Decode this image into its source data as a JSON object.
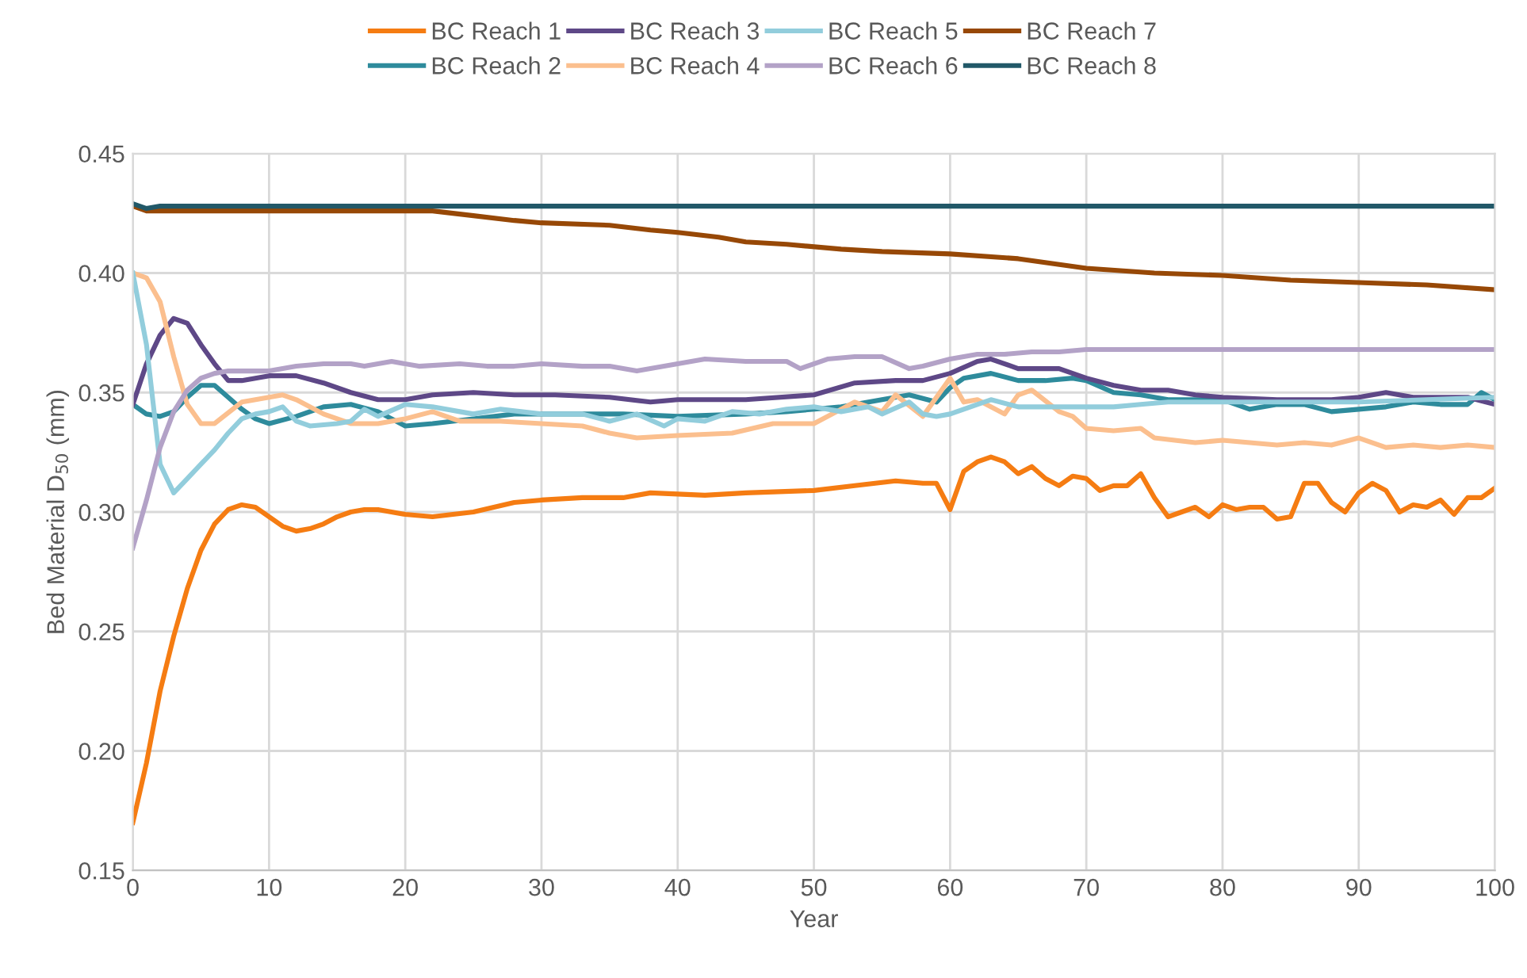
{
  "chart_data": {
    "type": "line",
    "xlabel": "Year",
    "ylabel": "Bed Material D$_{50}$ (mm)",
    "xlim": [
      0,
      100
    ],
    "xticks": [
      0,
      10,
      20,
      30,
      40,
      50,
      60,
      70,
      80,
      90,
      100
    ],
    "ylim": [
      0.15,
      0.45
    ],
    "yticks": [
      {
        "value": 0.15,
        "label": "0.15"
      },
      {
        "value": 0.2,
        "label": "0.20"
      },
      {
        "value": 0.25,
        "label": "0.25"
      },
      {
        "value": 0.3,
        "label": "0.30"
      },
      {
        "value": 0.35,
        "label": "0.35"
      },
      {
        "value": 0.4,
        "label": "0.40"
      },
      {
        "value": 0.45,
        "label": "0.45"
      }
    ],
    "grid": true,
    "legend": "top",
    "marker": "none",
    "line_style": "solid",
    "series": [
      {
        "name": "BC Reach 1",
        "color": "#f57c12",
        "x": [
          0,
          1,
          2,
          3,
          4,
          5,
          6,
          7,
          8,
          9,
          10,
          11,
          12,
          13,
          14,
          15,
          16,
          17,
          18,
          20,
          22,
          25,
          28,
          30,
          33,
          36,
          38,
          42,
          45,
          50,
          53,
          56,
          58,
          59,
          60,
          61,
          62,
          63,
          64,
          65,
          66,
          67,
          68,
          69,
          70,
          71,
          72,
          73,
          74,
          75,
          76,
          77,
          78,
          79,
          80,
          81,
          82,
          83,
          84,
          85,
          86,
          87,
          88,
          89,
          90,
          91,
          92,
          93,
          94,
          95,
          96,
          97,
          98,
          99,
          100
        ],
        "values": [
          0.17,
          0.195,
          0.225,
          0.248,
          0.268,
          0.284,
          0.295,
          0.301,
          0.303,
          0.302,
          0.298,
          0.294,
          0.292,
          0.293,
          0.295,
          0.298,
          0.3,
          0.301,
          0.301,
          0.299,
          0.298,
          0.3,
          0.304,
          0.305,
          0.306,
          0.306,
          0.308,
          0.307,
          0.308,
          0.309,
          0.311,
          0.313,
          0.312,
          0.312,
          0.301,
          0.317,
          0.321,
          0.323,
          0.321,
          0.316,
          0.319,
          0.314,
          0.311,
          0.315,
          0.314,
          0.309,
          0.311,
          0.311,
          0.316,
          0.306,
          0.298,
          0.3,
          0.302,
          0.298,
          0.303,
          0.301,
          0.302,
          0.302,
          0.297,
          0.298,
          0.312,
          0.312,
          0.304,
          0.3,
          0.308,
          0.312,
          0.309,
          0.3,
          0.303,
          0.302,
          0.305,
          0.299,
          0.306,
          0.306,
          0.31
        ]
      },
      {
        "name": "BC Reach 2",
        "color": "#2e8b9c",
        "x": [
          0,
          1,
          2,
          3,
          4,
          5,
          6,
          7,
          8,
          9,
          10,
          12,
          14,
          16,
          18,
          20,
          22,
          25,
          28,
          32,
          36,
          40,
          45,
          48,
          52,
          55,
          57,
          59,
          60,
          61,
          63,
          65,
          67,
          69,
          70,
          72,
          74,
          76,
          80,
          82,
          84,
          86,
          88,
          90,
          92,
          94,
          96,
          98,
          99,
          100
        ],
        "values": [
          0.345,
          0.341,
          0.34,
          0.342,
          0.348,
          0.353,
          0.353,
          0.348,
          0.343,
          0.339,
          0.337,
          0.34,
          0.344,
          0.345,
          0.342,
          0.336,
          0.337,
          0.339,
          0.341,
          0.341,
          0.341,
          0.34,
          0.341,
          0.342,
          0.344,
          0.347,
          0.349,
          0.346,
          0.352,
          0.356,
          0.358,
          0.355,
          0.355,
          0.356,
          0.355,
          0.35,
          0.349,
          0.347,
          0.347,
          0.343,
          0.345,
          0.345,
          0.342,
          0.343,
          0.344,
          0.346,
          0.345,
          0.345,
          0.35,
          0.347
        ]
      },
      {
        "name": "BC Reach 3",
        "color": "#5e4887",
        "x": [
          0,
          1,
          2,
          3,
          4,
          5,
          6,
          7,
          8,
          9,
          10,
          12,
          14,
          16,
          18,
          20,
          22,
          25,
          28,
          31,
          35,
          38,
          40,
          45,
          50,
          53,
          56,
          58,
          60,
          62,
          63,
          65,
          68,
          70,
          72,
          74,
          76,
          78,
          80,
          84,
          88,
          90,
          92,
          94,
          98,
          100
        ],
        "values": [
          0.345,
          0.362,
          0.374,
          0.381,
          0.379,
          0.37,
          0.362,
          0.355,
          0.355,
          0.356,
          0.357,
          0.357,
          0.354,
          0.35,
          0.347,
          0.347,
          0.349,
          0.35,
          0.349,
          0.349,
          0.348,
          0.346,
          0.347,
          0.347,
          0.349,
          0.354,
          0.355,
          0.355,
          0.358,
          0.363,
          0.364,
          0.36,
          0.36,
          0.356,
          0.353,
          0.351,
          0.351,
          0.349,
          0.348,
          0.347,
          0.347,
          0.348,
          0.35,
          0.348,
          0.348,
          0.345
        ]
      },
      {
        "name": "BC Reach 4",
        "color": "#fbbf8e",
        "x": [
          0,
          1,
          2,
          3,
          4,
          5,
          6,
          8,
          10,
          11,
          12,
          14,
          16,
          18,
          20,
          22,
          24,
          27,
          30,
          33,
          35,
          37,
          40,
          44,
          47,
          50,
          52,
          53,
          55,
          56,
          58,
          60,
          61,
          62,
          64,
          65,
          66,
          68,
          69,
          70,
          72,
          74,
          75,
          78,
          80,
          84,
          86,
          88,
          90,
          92,
          94,
          96,
          98,
          100
        ],
        "values": [
          0.4,
          0.398,
          0.388,
          0.365,
          0.345,
          0.337,
          0.337,
          0.346,
          0.348,
          0.349,
          0.347,
          0.341,
          0.337,
          0.337,
          0.339,
          0.342,
          0.338,
          0.338,
          0.337,
          0.336,
          0.333,
          0.331,
          0.332,
          0.333,
          0.337,
          0.337,
          0.343,
          0.346,
          0.342,
          0.349,
          0.34,
          0.356,
          0.346,
          0.347,
          0.341,
          0.349,
          0.351,
          0.342,
          0.34,
          0.335,
          0.334,
          0.335,
          0.331,
          0.329,
          0.33,
          0.328,
          0.329,
          0.328,
          0.331,
          0.327,
          0.328,
          0.327,
          0.328,
          0.327
        ]
      },
      {
        "name": "BC Reach 5",
        "color": "#92cddc",
        "x": [
          0,
          1,
          2,
          3,
          4,
          5,
          6,
          7,
          8,
          9,
          10,
          11,
          12,
          13,
          15,
          16,
          17,
          18,
          20,
          22,
          24,
          25,
          27,
          30,
          33,
          35,
          37,
          39,
          40,
          42,
          44,
          46,
          48,
          50,
          52,
          54,
          55,
          57,
          58,
          59,
          60,
          61,
          63,
          65,
          67,
          69,
          72,
          74,
          76,
          80,
          85,
          90,
          95,
          100
        ],
        "values": [
          0.4,
          0.37,
          0.32,
          0.308,
          0.314,
          0.32,
          0.326,
          0.333,
          0.339,
          0.341,
          0.342,
          0.344,
          0.338,
          0.336,
          0.337,
          0.338,
          0.343,
          0.34,
          0.345,
          0.344,
          0.342,
          0.341,
          0.343,
          0.341,
          0.341,
          0.338,
          0.341,
          0.336,
          0.339,
          0.338,
          0.342,
          0.341,
          0.343,
          0.344,
          0.342,
          0.344,
          0.341,
          0.346,
          0.341,
          0.34,
          0.341,
          0.343,
          0.347,
          0.344,
          0.344,
          0.344,
          0.344,
          0.345,
          0.346,
          0.346,
          0.346,
          0.346,
          0.347,
          0.348
        ]
      },
      {
        "name": "BC Reach 6",
        "color": "#b3a2c7",
        "x": [
          0,
          1,
          2,
          3,
          4,
          5,
          6,
          7,
          10,
          12,
          14,
          16,
          17,
          19,
          21,
          24,
          26,
          28,
          30,
          33,
          35,
          37,
          40,
          42,
          45,
          48,
          49,
          51,
          53,
          55,
          57,
          58,
          60,
          62,
          64,
          66,
          68,
          70,
          75,
          80,
          100
        ],
        "values": [
          0.285,
          0.305,
          0.327,
          0.342,
          0.351,
          0.356,
          0.358,
          0.359,
          0.359,
          0.361,
          0.362,
          0.362,
          0.361,
          0.363,
          0.361,
          0.362,
          0.361,
          0.361,
          0.362,
          0.361,
          0.361,
          0.359,
          0.362,
          0.364,
          0.363,
          0.363,
          0.36,
          0.364,
          0.365,
          0.365,
          0.36,
          0.361,
          0.364,
          0.366,
          0.366,
          0.367,
          0.367,
          0.368,
          0.368,
          0.368,
          0.368
        ]
      },
      {
        "name": "BC Reach 7",
        "color": "#974806",
        "x": [
          0,
          1,
          22,
          25,
          28,
          30,
          35,
          38,
          40,
          43,
          45,
          48,
          52,
          55,
          60,
          65,
          70,
          75,
          80,
          85,
          90,
          95,
          100
        ],
        "values": [
          0.428,
          0.426,
          0.426,
          0.424,
          0.422,
          0.421,
          0.42,
          0.418,
          0.417,
          0.415,
          0.413,
          0.412,
          0.41,
          0.409,
          0.408,
          0.406,
          0.402,
          0.4,
          0.399,
          0.397,
          0.396,
          0.395,
          0.393
        ]
      },
      {
        "name": "BC Reach 8",
        "color": "#215868",
        "x": [
          0,
          1,
          2,
          100
        ],
        "values": [
          0.429,
          0.427,
          0.428,
          0.428
        ]
      }
    ]
  }
}
